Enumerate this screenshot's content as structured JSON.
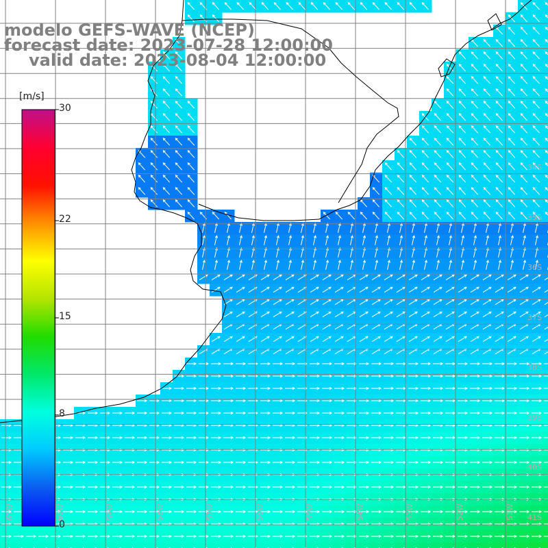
{
  "title": {
    "line1": "modelo GEFS-WAVE (NCEP)",
    "line2": "forecast date: 2023-07-28 12:00:00",
    "line3": "valid date: 2023-08-04 12:00:00"
  },
  "colorbar": {
    "unit": "[m/s]",
    "ticks": [
      {
        "value": 30,
        "label": "30"
      },
      {
        "value": 22,
        "label": "22"
      },
      {
        "value": 15,
        "label": "15"
      },
      {
        "value": 8,
        "label": "8"
      },
      {
        "value": 0,
        "label": "0"
      }
    ],
    "colors": [
      "#0000ff",
      "#0a5cf0",
      "#00c8ff",
      "#00ffe0",
      "#00e86a",
      "#20dc00",
      "#b4e400",
      "#ffff00",
      "#ff9000",
      "#ff1000",
      "#ff0030",
      "#c0108a"
    ]
  },
  "map": {
    "lat_labels": [
      "34S",
      "35S",
      "36S",
      "37S",
      "38S",
      "39S",
      "40S",
      "41S"
    ],
    "lon_labels": [
      "61W",
      "60W",
      "59W",
      "58W",
      "57W",
      "56W",
      "55W",
      "54W",
      "53W",
      "52W",
      "51W"
    ],
    "colors": {
      "land": "#ffffff",
      "coast": "#000000",
      "grid": "#808080",
      "arrow": "#ffffff"
    }
  }
}
